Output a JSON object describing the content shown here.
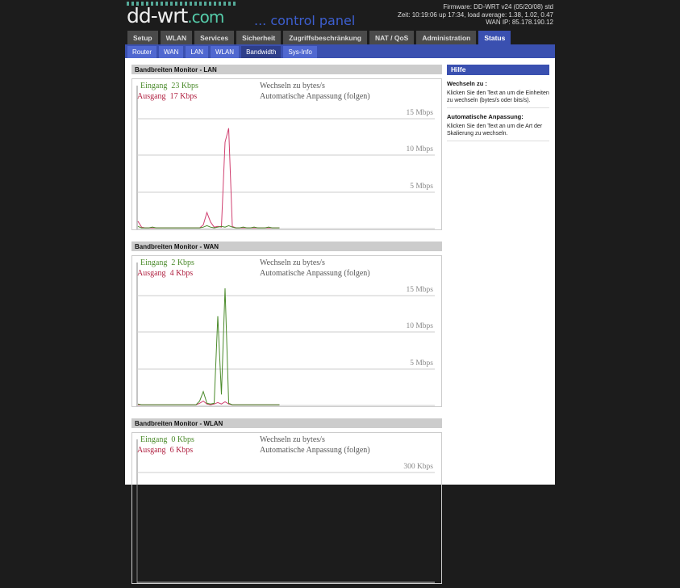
{
  "header": {
    "logo": "dd-wrt",
    "logo_suffix": ".com",
    "subtitle": "... control panel",
    "firmware": "Firmware: DD-WRT v24 (05/20/08) std",
    "time": "Zeit: 10:19:06 up 17:34, load average: 1.38, 1.02, 0.47",
    "wan_ip": "WAN IP: 85.178.190.12"
  },
  "tabs": [
    {
      "label": "Setup"
    },
    {
      "label": "WLAN"
    },
    {
      "label": "Services"
    },
    {
      "label": "Sicherheit"
    },
    {
      "label": "Zugriffsbeschränkung"
    },
    {
      "label": "NAT / QoS"
    },
    {
      "label": "Administration"
    },
    {
      "label": "Status",
      "active": true
    }
  ],
  "subtabs": [
    {
      "label": "Router"
    },
    {
      "label": "WAN"
    },
    {
      "label": "LAN"
    },
    {
      "label": "WLAN"
    },
    {
      "label": "Bandwidth",
      "active": true
    },
    {
      "label": "Sys-Info"
    }
  ],
  "colors": {
    "incoming": "#4a8a2a",
    "outgoing": "#d04070",
    "accent": "#3a50b0"
  },
  "monitors": [
    {
      "title": "Bandbreiten Monitor - LAN",
      "in_label": "Eingang",
      "in_value": "23 Kbps",
      "out_label": "Ausgang",
      "out_value": "17 Kbps",
      "switch": "Wechseln zu bytes/s",
      "scale": "Automatische Anpassung (folgen)",
      "grid": [
        "15 Mbps",
        "10 Mbps",
        "5 Mbps"
      ],
      "grid_max": 15,
      "in_series": [
        0.3,
        0.1,
        0.1,
        0.1,
        0.2,
        0.1,
        0.1,
        0.1,
        0.1,
        0.1,
        0.1,
        0.1,
        0.1,
        0.1,
        0.1,
        0.1,
        0.1,
        0.1,
        0.2,
        0.4,
        0.2,
        0.1,
        0.2,
        0.3,
        0.2,
        0.4,
        0.2,
        0.1,
        0.1,
        0.2,
        0.1,
        0.1,
        0.2,
        0.1,
        0.1,
        0.1,
        0.2,
        0.1,
        0.1,
        0.1
      ],
      "out_series": [
        1.0,
        0.2,
        0.1,
        0.1,
        0.1,
        0.1,
        0.1,
        0.1,
        0.1,
        0.1,
        0.1,
        0.1,
        0.1,
        0.1,
        0.1,
        0.1,
        0.1,
        0.1,
        0.5,
        2.2,
        0.9,
        0.2,
        0.3,
        0.2,
        11.8,
        13.7,
        0.3,
        0.1,
        0.1,
        0.1,
        0.1,
        0.1,
        0.1,
        0.1,
        0.1,
        0.1,
        0.1,
        0.1,
        0.1,
        0.1
      ]
    },
    {
      "title": "Bandbreiten Monitor - WAN",
      "in_label": "Eingang",
      "in_value": "2 Kbps",
      "out_label": "Ausgang",
      "out_value": "4 Kbps",
      "switch": "Wechseln zu bytes/s",
      "scale": "Automatische Anpassung (folgen)",
      "grid": [
        "15 Mbps",
        "10 Mbps",
        "5 Mbps"
      ],
      "grid_max": 15,
      "in_series": [
        0.2,
        0.1,
        0.1,
        0.1,
        0.1,
        0.1,
        0.1,
        0.1,
        0.1,
        0.1,
        0.1,
        0.1,
        0.1,
        0.1,
        0.1,
        0.1,
        0.1,
        0.6,
        1.9,
        0.3,
        0.2,
        0.3,
        12.2,
        1.5,
        16.0,
        0.3,
        0.1,
        0.1,
        0.1,
        0.1,
        0.1,
        0.1,
        0.1,
        0.1,
        0.1,
        0.1,
        0.1,
        0.1,
        0.1,
        0.1
      ],
      "out_series": [
        0.1,
        0.1,
        0.1,
        0.1,
        0.1,
        0.1,
        0.1,
        0.1,
        0.1,
        0.1,
        0.1,
        0.1,
        0.1,
        0.1,
        0.1,
        0.1,
        0.1,
        0.3,
        0.6,
        0.2,
        0.1,
        0.2,
        0.4,
        0.2,
        0.5,
        0.2,
        0.1,
        0.1,
        0.1,
        0.1,
        0.1,
        0.1,
        0.1,
        0.1,
        0.1,
        0.1,
        0.1,
        0.1,
        0.1,
        0.1
      ]
    },
    {
      "title": "Bandbreiten Monitor - WLAN",
      "in_label": "Eingang",
      "in_value": "0 Kbps",
      "out_label": "Ausgang",
      "out_value": "6 Kbps",
      "switch": "Wechseln zu bytes/s",
      "scale": "Automatische Anpassung (folgen)",
      "grid": [
        "300 Kbps"
      ],
      "grid_max": 300,
      "in_series": [],
      "out_series": []
    }
  ],
  "help": {
    "title": "Hilfe",
    "items": [
      {
        "title": "Wechseln zu :",
        "text": "Klicken Sie den Text an um die Einheiten zu wechseln (bytes/s oder bits/s)."
      },
      {
        "title": "Automatische Anpassung:",
        "text": "Klicken Sie den Text an um die Art der Skalierung zu wechseln."
      }
    ]
  }
}
